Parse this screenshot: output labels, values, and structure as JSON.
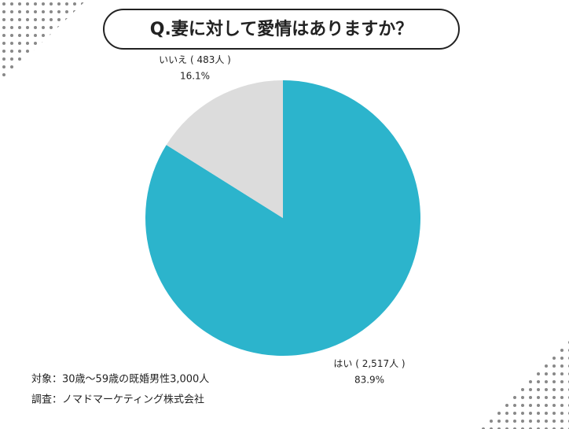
{
  "chart_data": {
    "type": "pie",
    "title": "Q.妻に対して愛情はありますか？",
    "categories": [
      "はい",
      "いいえ"
    ],
    "values": [
      83.9,
      16.1
    ],
    "value_labels": [
      "83.9%",
      "16.1%"
    ],
    "count_labels": [
      "( 2,517人 )",
      "( 483人 )"
    ],
    "colors": [
      "#2cb4cc",
      "#dcdcdc"
    ],
    "notes": [
      "対象：30歳～59歳の既婚男性3,000人",
      "調査：ノマドマーケティング株式会社"
    ]
  }
}
